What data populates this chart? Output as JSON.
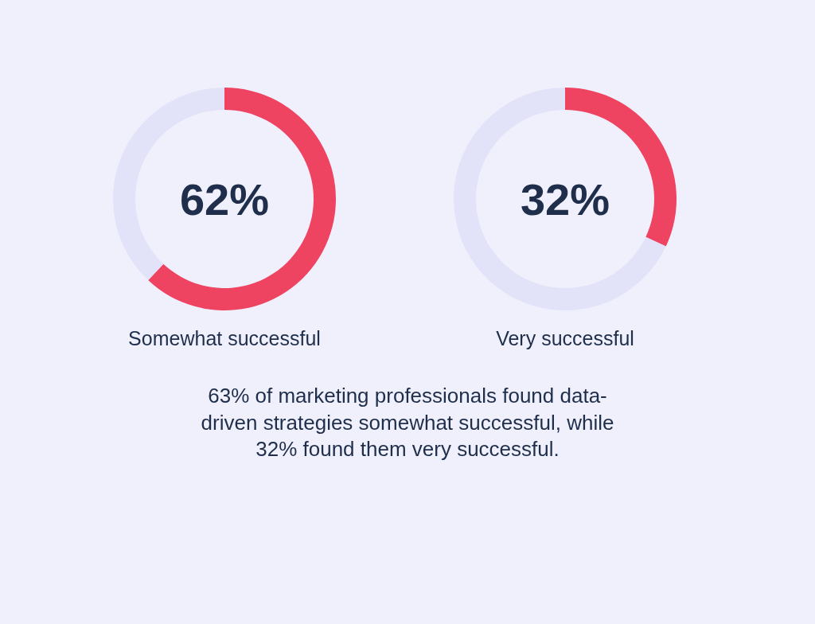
{
  "chart_data": [
    {
      "type": "donut",
      "title": "Somewhat successful",
      "categories": [
        null,
        null
      ],
      "values": [
        62,
        38
      ],
      "colors": [
        "#ee4461",
        "#e2e2f8"
      ],
      "annotations": [
        "62%"
      ]
    },
    {
      "type": "donut",
      "title": "Very successful",
      "categories": [
        null,
        null
      ],
      "values": [
        32,
        68
      ],
      "colors": [
        "#ee4461",
        "#e2e2f8"
      ],
      "annotations": [
        "32%"
      ]
    },
    {
      "type": "other",
      "annotations": [
        "63% of marketing professionals found data-driven strategies somewhat successful, while 32% found them very successful."
      ]
    }
  ]
}
